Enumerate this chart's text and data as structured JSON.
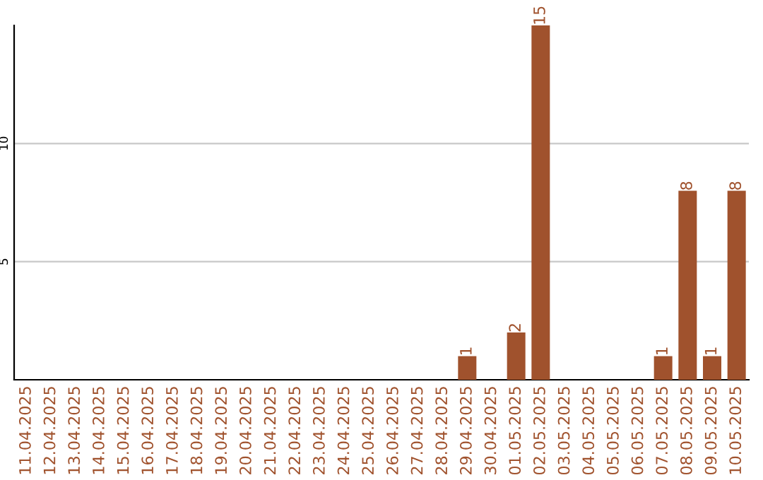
{
  "chart_data": {
    "type": "bar",
    "categories": [
      "11.04.2025",
      "12.04.2025",
      "13.04.2025",
      "14.04.2025",
      "15.04.2025",
      "16.04.2025",
      "17.04.2025",
      "18.04.2025",
      "19.04.2025",
      "20.04.2025",
      "21.04.2025",
      "22.04.2025",
      "23.04.2025",
      "24.04.2025",
      "25.04.2025",
      "26.04.2025",
      "27.04.2025",
      "28.04.2025",
      "29.04.2025",
      "30.04.2025",
      "01.05.2025",
      "02.05.2025",
      "03.05.2025",
      "04.05.2025",
      "05.05.2025",
      "06.05.2025",
      "07.05.2025",
      "08.05.2025",
      "09.05.2025",
      "10.05.2025"
    ],
    "values": [
      0,
      0,
      0,
      0,
      0,
      0,
      0,
      0,
      0,
      0,
      0,
      0,
      0,
      0,
      0,
      0,
      0,
      0,
      1,
      0,
      2,
      15,
      0,
      0,
      0,
      0,
      1,
      8,
      1,
      8
    ],
    "value_labels": [
      null,
      null,
      null,
      null,
      null,
      null,
      null,
      null,
      null,
      null,
      null,
      null,
      null,
      null,
      null,
      null,
      null,
      null,
      "1",
      null,
      "2",
      "15",
      null,
      null,
      null,
      null,
      "1",
      "8",
      "1",
      "8"
    ],
    "color": "#a0522d",
    "ylim": [
      0,
      15
    ],
    "yticks": [
      5,
      10
    ],
    "grid": "y",
    "legend": false
  }
}
